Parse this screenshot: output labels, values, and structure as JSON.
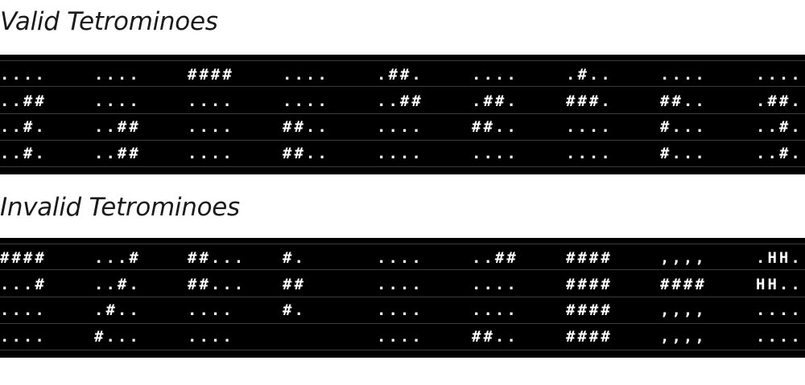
{
  "valid": {
    "title": "Valid Tetrominoes",
    "rows": [
      [
        "....",
        "....",
        "####",
        "....",
        ".##.",
        "....",
        ".#..",
        "....",
        "...."
      ],
      [
        "..##",
        "....",
        "....",
        "....",
        "..##",
        ".##.",
        "###.",
        "##..",
        ".##."
      ],
      [
        "..#.",
        "..##",
        "....",
        "##..",
        "....",
        "##..",
        "....",
        "#...",
        "..#."
      ],
      [
        "..#.",
        "..##",
        "....",
        "##..",
        "....",
        "....",
        "....",
        "#...",
        "..#."
      ]
    ]
  },
  "invalid": {
    "title": "Invalid Tetrominoes",
    "rows": [
      [
        "####",
        "...#",
        "##...",
        "#.",
        "....",
        "..##",
        "####",
        ",,,,",
        ".HH."
      ],
      [
        "...#",
        "..#.",
        "##...",
        "##",
        "....",
        "....",
        "####",
        "####",
        "HH.."
      ],
      [
        "....",
        ".#..",
        "....",
        "#.",
        "....",
        "....",
        "####",
        ",,,,",
        "...."
      ],
      [
        "....",
        "#...",
        "....",
        "",
        "....",
        "##..",
        "####",
        ",,,,",
        "...."
      ]
    ]
  }
}
